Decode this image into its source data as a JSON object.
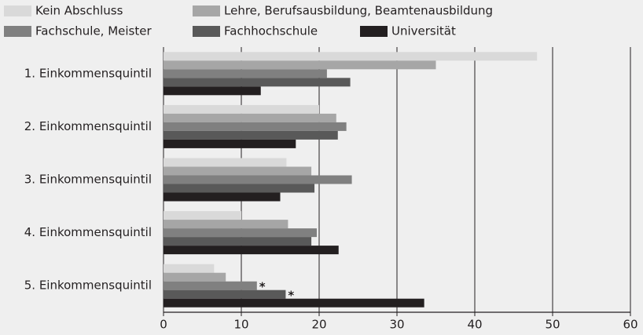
{
  "chart_data": {
    "type": "bar",
    "orientation": "horizontal",
    "categories": [
      "1. Einkommensquintil",
      "2. Einkommensquintil",
      "3. Einkommensquintil",
      "4. Einkommensquintil",
      "5. Einkommensquintil"
    ],
    "series": [
      {
        "name": "Kein Abschluss",
        "color": "#d9d9d9",
        "values": [
          48,
          20,
          15.8,
          10,
          6.5
        ]
      },
      {
        "name": "Lehre, Berufsausbildung, Beamtenausbildung",
        "color": "#a6a6a6",
        "values": [
          35,
          22.2,
          19,
          16,
          8
        ]
      },
      {
        "name": "Fachschule, Meister",
        "color": "#808080",
        "values": [
          21,
          23.5,
          24.2,
          19.7,
          12
        ]
      },
      {
        "name": "Fachhochschule",
        "color": "#595959",
        "values": [
          24,
          22.4,
          19.4,
          19,
          15.7
        ]
      },
      {
        "name": "Universität",
        "color": "#231f20",
        "values": [
          12.5,
          17,
          15,
          22.5,
          33.5
        ]
      }
    ],
    "annotations": [
      {
        "text": "*",
        "series": "Fachschule, Meister",
        "category": "5. Einkommensquintil"
      },
      {
        "text": "*",
        "series": "Fachhochschule",
        "category": "5. Einkommensquintil"
      }
    ],
    "xlim": [
      0,
      60
    ],
    "xticks": [
      0,
      10,
      20,
      30,
      40,
      50,
      60
    ],
    "grid": true,
    "legend": "top"
  }
}
